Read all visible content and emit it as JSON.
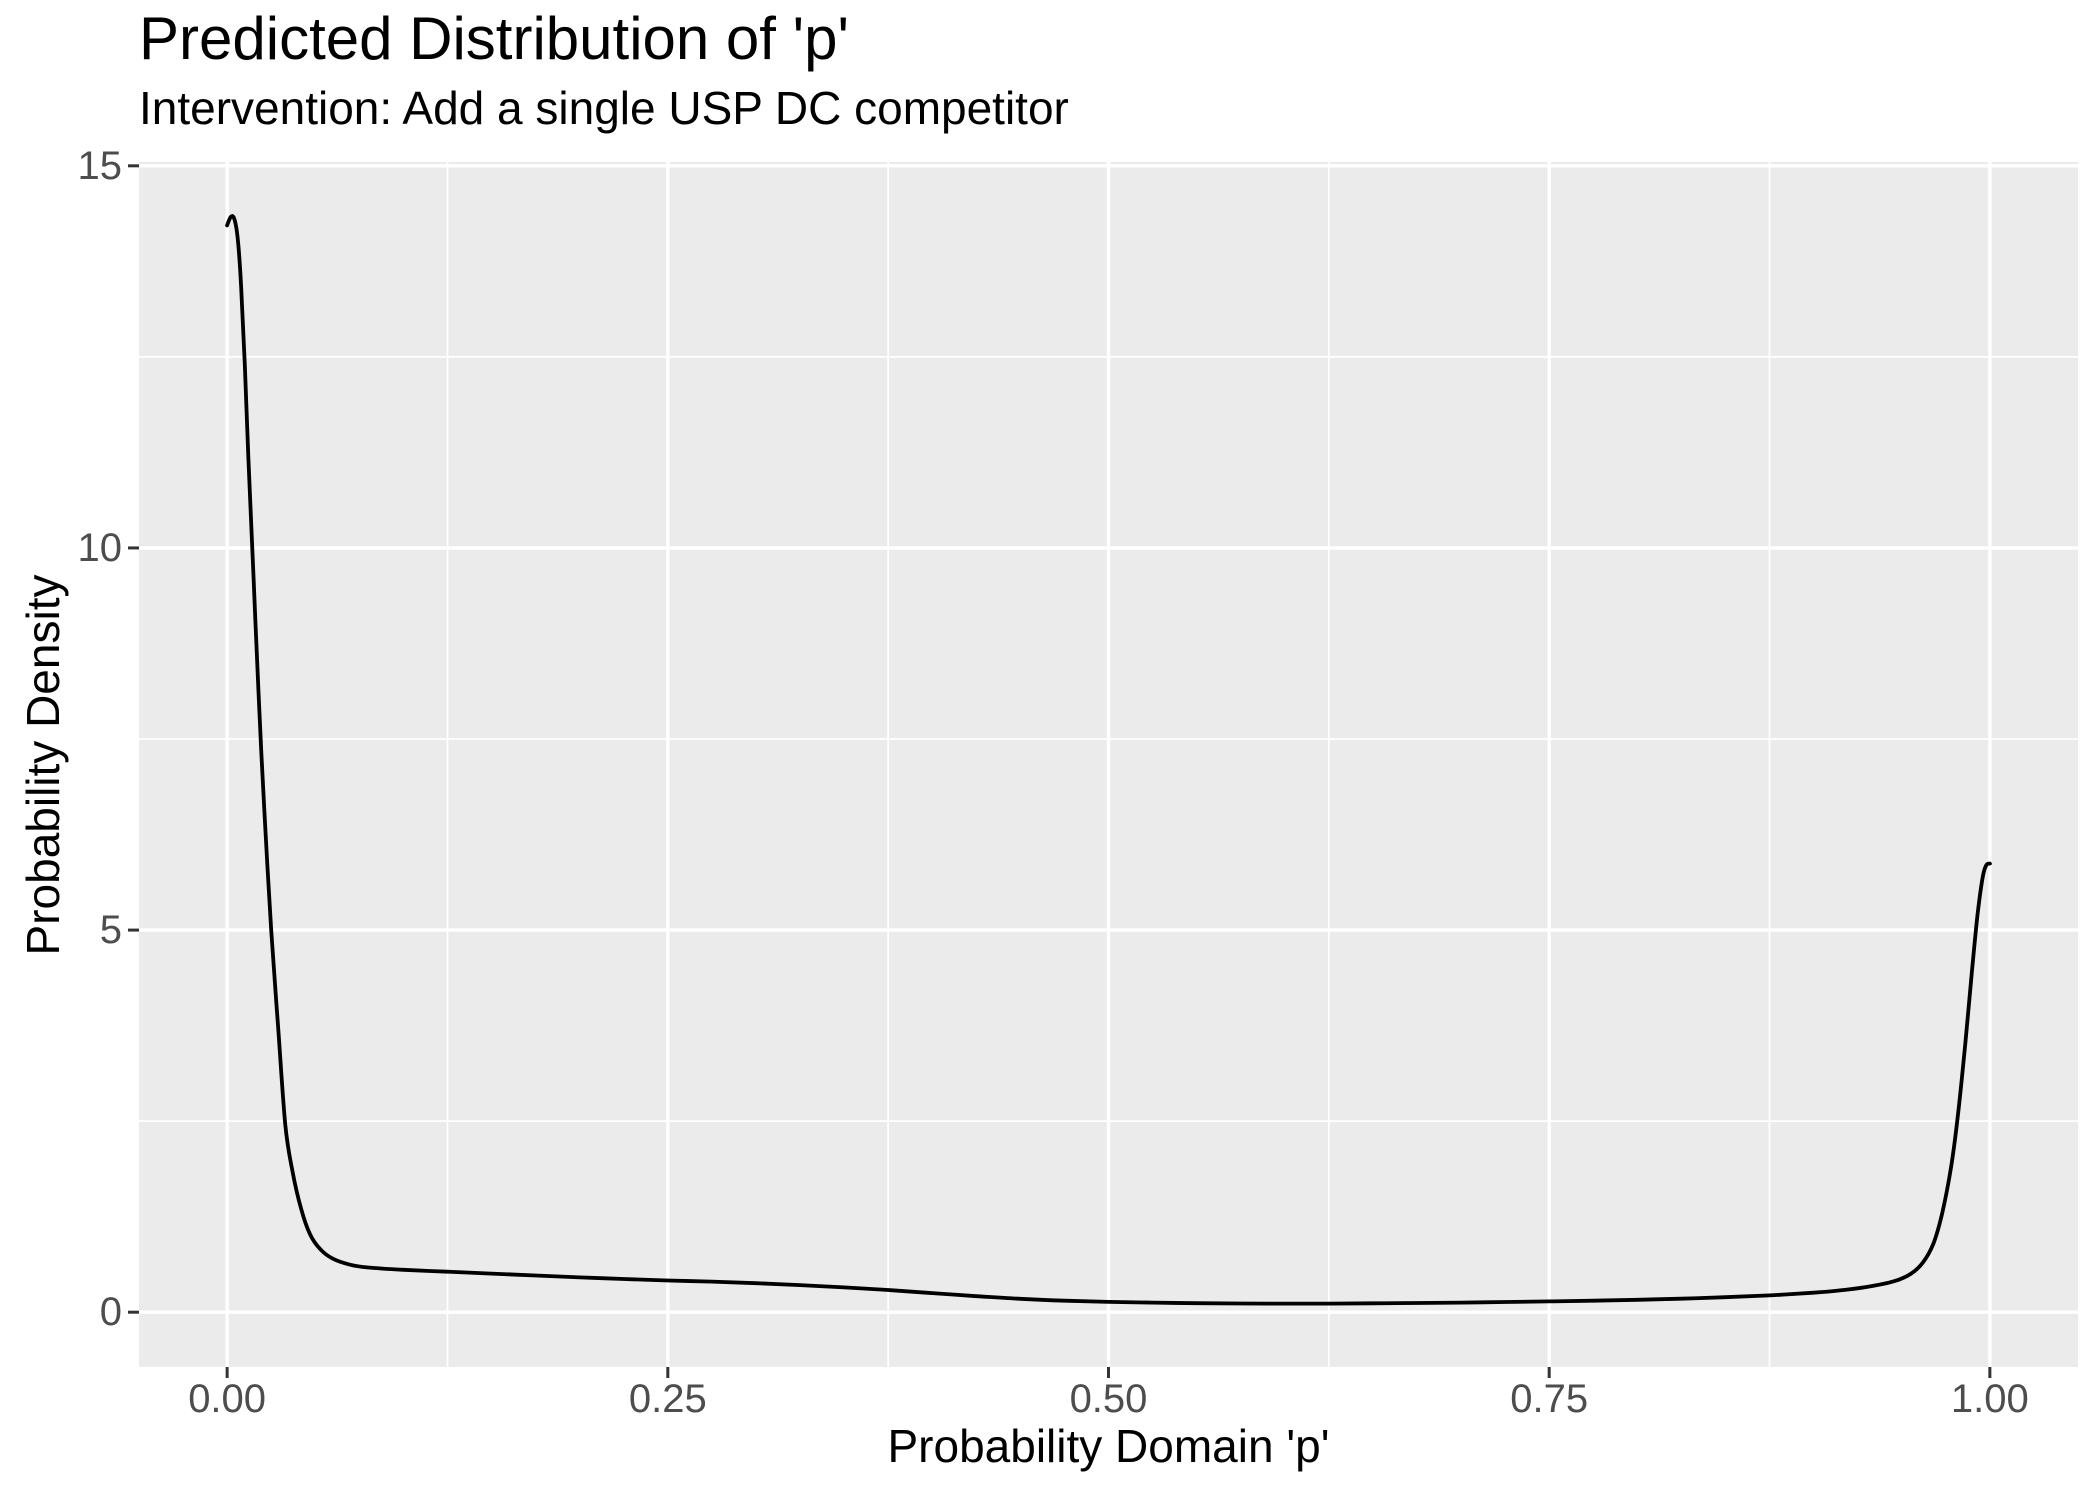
{
  "title": "Predicted Distribution of 'p'",
  "subtitle": "Intervention: Add a single USP DC competitor",
  "style": {
    "panel_bg": "#EBEBEB",
    "grid_color": "#FFFFFF",
    "curve_color": "#000000",
    "tick_mark_color": "#333333",
    "tick_label_color": "#4D4D4D",
    "title_color": "#000000"
  },
  "chart_data": {
    "type": "line",
    "title": "Predicted Distribution of 'p'",
    "subtitle": "Intervention: Add a single USP DC competitor",
    "xlabel": "Probability Domain 'p'",
    "ylabel": "Probability Density",
    "xlim": [
      -0.05,
      1.05
    ],
    "ylim": [
      -0.717,
      15.05
    ],
    "x_ticks": [
      0.0,
      0.25,
      0.5,
      0.75,
      1.0
    ],
    "x_tick_labels": [
      "0.00",
      "0.25",
      "0.50",
      "0.75",
      "1.00"
    ],
    "y_ticks": [
      0,
      5,
      10,
      15
    ],
    "y_tick_labels": [
      "0",
      "5",
      "10",
      "15"
    ],
    "x_minor": [
      0.125,
      0.375,
      0.625,
      0.875
    ],
    "y_minor": [
      2.5,
      7.5,
      12.5
    ],
    "grid": true,
    "legend": "none",
    "series": [
      {
        "name": "density",
        "x": [
          0.0,
          0.002,
          0.004,
          0.006,
          0.008,
          0.01,
          0.012,
          0.015,
          0.018,
          0.021,
          0.025,
          0.029,
          0.033,
          0.037,
          0.042,
          0.047,
          0.053,
          0.06,
          0.07,
          0.08,
          0.1,
          0.125,
          0.15,
          0.175,
          0.2,
          0.225,
          0.25,
          0.275,
          0.3,
          0.325,
          0.35,
          0.375,
          0.4,
          0.425,
          0.45,
          0.475,
          0.5,
          0.525,
          0.55,
          0.575,
          0.6,
          0.625,
          0.65,
          0.675,
          0.7,
          0.725,
          0.75,
          0.775,
          0.8,
          0.825,
          0.85,
          0.875,
          0.9,
          0.915,
          0.93,
          0.945,
          0.955,
          0.962,
          0.968,
          0.973,
          0.978,
          0.982,
          0.986,
          0.99,
          0.993,
          0.996,
          0.998,
          1.0
        ],
        "y": [
          14.22,
          14.33,
          14.31,
          14.05,
          13.4,
          12.4,
          11.2,
          9.6,
          8.0,
          6.6,
          5.0,
          3.7,
          2.45,
          1.85,
          1.35,
          1.02,
          0.82,
          0.7,
          0.62,
          0.585,
          0.555,
          0.53,
          0.505,
          0.48,
          0.455,
          0.435,
          0.415,
          0.4,
          0.38,
          0.355,
          0.325,
          0.29,
          0.25,
          0.21,
          0.175,
          0.15,
          0.135,
          0.125,
          0.118,
          0.114,
          0.112,
          0.113,
          0.116,
          0.12,
          0.126,
          0.133,
          0.141,
          0.15,
          0.162,
          0.177,
          0.196,
          0.22,
          0.255,
          0.285,
          0.33,
          0.4,
          0.5,
          0.65,
          0.9,
          1.3,
          1.9,
          2.6,
          3.5,
          4.5,
          5.2,
          5.7,
          5.85,
          5.87
        ]
      }
    ]
  }
}
